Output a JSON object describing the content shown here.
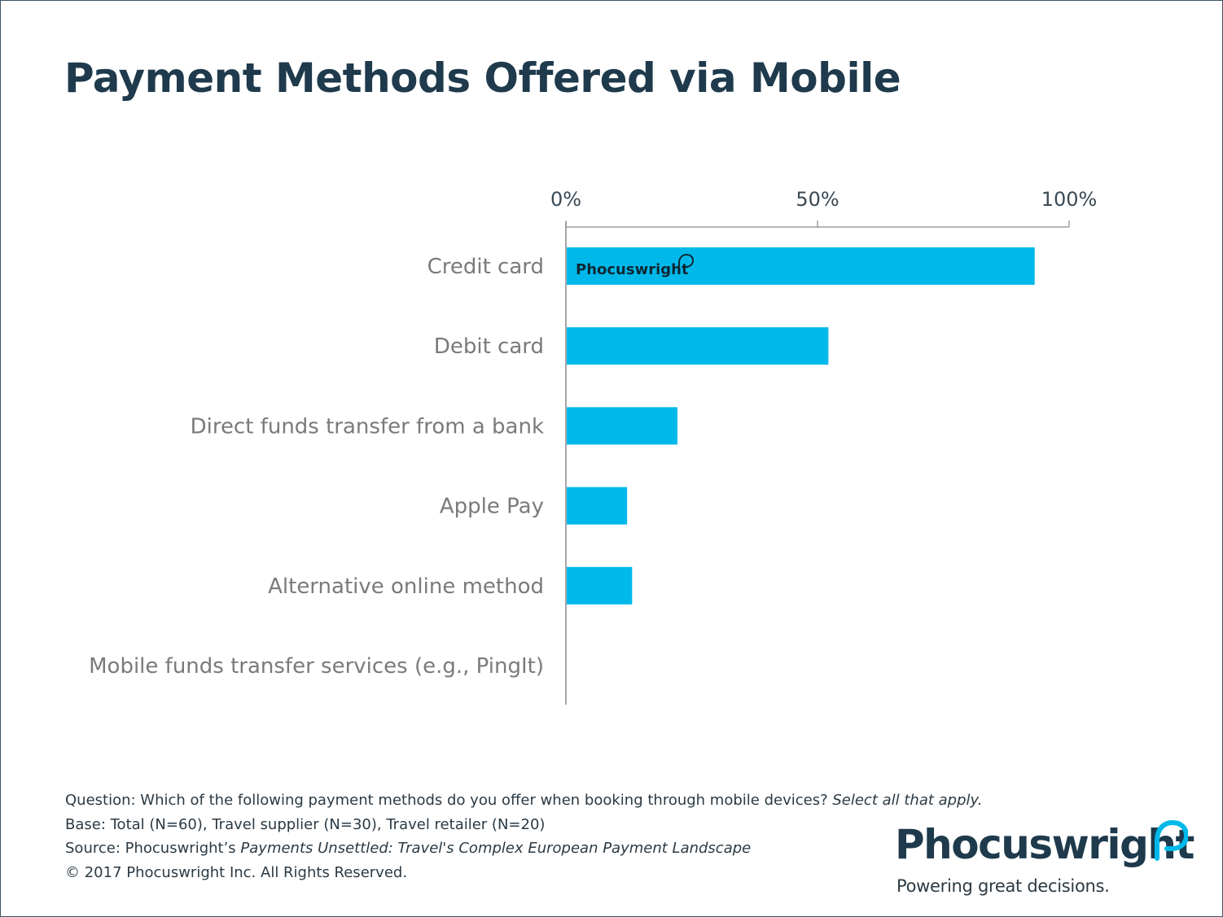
{
  "title": "Payment Methods Offered via Mobile",
  "colors": {
    "bar": "#00b9ea",
    "title": "#1e3a4c",
    "axis": "#8a8a8a",
    "logo_accent": "#00b9ea"
  },
  "chart_data": {
    "type": "bar",
    "orientation": "horizontal",
    "categories": [
      "Credit card",
      "Debit card",
      "Direct funds transfer from a bank",
      "Apple Pay",
      "Alternative online method",
      "Mobile funds transfer services (e.g., PingIt)"
    ],
    "values": [
      93,
      52,
      22,
      12,
      13,
      0
    ],
    "x_ticks": [
      "0%",
      "50%",
      "100%"
    ],
    "xlim": [
      0,
      100
    ],
    "grid": false,
    "watermark": "Phocuswright"
  },
  "footer": {
    "question_text": "Question: Which of the following payment methods do you offer when booking through mobile devices? ",
    "question_italic": "Select all that apply.",
    "base": "Base: Total (N=60), Travel supplier (N=30), Travel retailer (N=20)",
    "source_text": "Source: Phocuswright’s ",
    "source_italic": "Payments Unsettled: Travel's Complex European Payment Landscape",
    "copyright": "© 2017 Phocuswright Inc. All Rights Reserved."
  },
  "logo": {
    "name": "Phocuswright",
    "tagline": "Powering great decisions."
  }
}
